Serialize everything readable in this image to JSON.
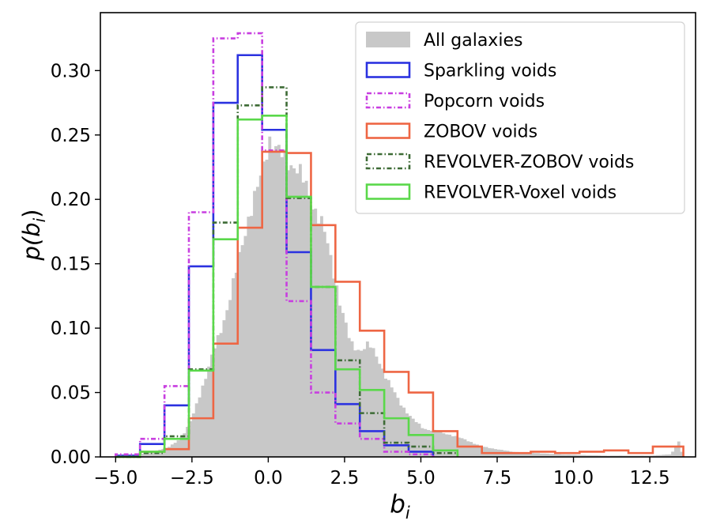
{
  "chart_data": {
    "type": "histogram",
    "xlabel": "b",
    "xlabel_sub": "i",
    "ylabel": "p(b",
    "ylabel_sub": "i",
    "ylabel_close": ")",
    "xlim": [
      -5.5,
      14.0
    ],
    "ylim": [
      0,
      0.345
    ],
    "xticks": [
      -5.0,
      -2.5,
      0.0,
      2.5,
      5.0,
      7.5,
      10.0,
      12.5
    ],
    "xtick_labels": [
      "−5.0",
      "−2.5",
      "0.0",
      "2.5",
      "5.0",
      "7.5",
      "10.0",
      "12.5"
    ],
    "yticks": [
      0.0,
      0.05,
      0.1,
      0.15,
      0.2,
      0.25,
      0.3
    ],
    "ytick_labels": [
      "0.00",
      "0.05",
      "0.10",
      "0.15",
      "0.20",
      "0.25",
      "0.30"
    ],
    "legend_position": "top-right",
    "grid": false,
    "background": {
      "name": "All galaxies",
      "color": "#c8c8c8",
      "profile": [
        [
          -4.8,
          0.0
        ],
        [
          -4.0,
          0.003
        ],
        [
          -3.3,
          0.007
        ],
        [
          -3.0,
          0.012
        ],
        [
          -2.7,
          0.02
        ],
        [
          -2.5,
          0.03
        ],
        [
          -2.3,
          0.045
        ],
        [
          -2.0,
          0.065
        ],
        [
          -1.75,
          0.085
        ],
        [
          -1.55,
          0.1
        ],
        [
          -1.3,
          0.118
        ],
        [
          -1.1,
          0.138
        ],
        [
          -0.9,
          0.162
        ],
        [
          -0.7,
          0.182
        ],
        [
          -0.5,
          0.195
        ],
        [
          -0.3,
          0.212
        ],
        [
          -0.1,
          0.232
        ],
        [
          0.0,
          0.25
        ],
        [
          0.15,
          0.242
        ],
        [
          0.3,
          0.236
        ],
        [
          0.6,
          0.232
        ],
        [
          0.9,
          0.225
        ],
        [
          1.2,
          0.212
        ],
        [
          1.5,
          0.195
        ],
        [
          1.8,
          0.178
        ],
        [
          2.1,
          0.15
        ],
        [
          2.4,
          0.115
        ],
        [
          2.7,
          0.088
        ],
        [
          3.0,
          0.083
        ],
        [
          3.3,
          0.087
        ],
        [
          3.6,
          0.077
        ],
        [
          3.9,
          0.06
        ],
        [
          4.3,
          0.043
        ],
        [
          4.7,
          0.03
        ],
        [
          5.1,
          0.022
        ],
        [
          5.5,
          0.02
        ],
        [
          6.0,
          0.017
        ],
        [
          6.5,
          0.013
        ],
        [
          7.0,
          0.008
        ],
        [
          8.0,
          0.004
        ],
        [
          9.5,
          0.002
        ],
        [
          11.0,
          0.001
        ],
        [
          12.5,
          0.001
        ],
        [
          13.2,
          0.002
        ],
        [
          13.45,
          0.012
        ],
        [
          13.6,
          0.0
        ]
      ]
    },
    "series": [
      {
        "name": "Sparkling voids",
        "color": "#2b32e0",
        "dash": "solid",
        "edges": [
          -5.0,
          -4.2,
          -3.4,
          -2.6,
          -1.8,
          -1.0,
          -0.2,
          0.6,
          1.4,
          2.2,
          3.0,
          3.8,
          4.6,
          5.4
        ],
        "values": [
          0.001,
          0.01,
          0.04,
          0.148,
          0.275,
          0.312,
          0.254,
          0.159,
          0.083,
          0.041,
          0.02,
          0.009,
          0.004
        ]
      },
      {
        "name": "Popcorn voids",
        "color": "#c83ee0",
        "dash": "6,3,1.5,3",
        "edges": [
          -5.0,
          -4.2,
          -3.4,
          -2.6,
          -1.8,
          -1.0,
          -0.2,
          0.6,
          1.4,
          2.2,
          3.0,
          3.8,
          4.6,
          5.4
        ],
        "values": [
          0.002,
          0.014,
          0.055,
          0.19,
          0.325,
          0.329,
          0.238,
          0.121,
          0.05,
          0.026,
          0.014,
          0.004,
          0.002
        ]
      },
      {
        "name": "ZOBOV voids",
        "color": "#ee6644",
        "dash": "solid",
        "edges": [
          -5.0,
          -4.2,
          -3.4,
          -2.6,
          -1.8,
          -1.0,
          -0.2,
          0.6,
          1.4,
          2.2,
          3.0,
          3.8,
          4.6,
          5.4,
          6.2,
          7.0,
          7.8,
          8.6,
          9.4,
          10.2,
          11.0,
          11.8,
          12.6,
          13.6
        ],
        "values": [
          0.0,
          0.004,
          0.006,
          0.03,
          0.088,
          0.178,
          0.237,
          0.236,
          0.18,
          0.136,
          0.098,
          0.066,
          0.05,
          0.02,
          0.008,
          0.003,
          0.003,
          0.004,
          0.003,
          0.004,
          0.005,
          0.003,
          0.008
        ]
      },
      {
        "name": "REVOLVER-ZOBOV voids",
        "color": "#3d6b35",
        "dash": "6,3,1.5,3",
        "edges": [
          -5.0,
          -4.2,
          -3.4,
          -2.6,
          -1.8,
          -1.0,
          -0.2,
          0.6,
          1.4,
          2.2,
          3.0,
          3.8,
          4.6,
          5.4,
          6.2
        ],
        "values": [
          0.0,
          0.003,
          0.016,
          0.068,
          0.182,
          0.273,
          0.287,
          0.201,
          0.132,
          0.075,
          0.034,
          0.011,
          0.008,
          0.003
        ]
      },
      {
        "name": "REVOLVER-Voxel voids",
        "color": "#5ad84a",
        "dash": "solid",
        "edges": [
          -5.0,
          -4.2,
          -3.4,
          -2.6,
          -1.8,
          -1.0,
          -0.2,
          0.6,
          1.4,
          2.2,
          3.0,
          3.8,
          4.6,
          5.4,
          6.2
        ],
        "values": [
          0.0,
          0.004,
          0.014,
          0.067,
          0.169,
          0.262,
          0.265,
          0.202,
          0.132,
          0.068,
          0.052,
          0.03,
          0.017,
          0.005
        ]
      }
    ]
  }
}
